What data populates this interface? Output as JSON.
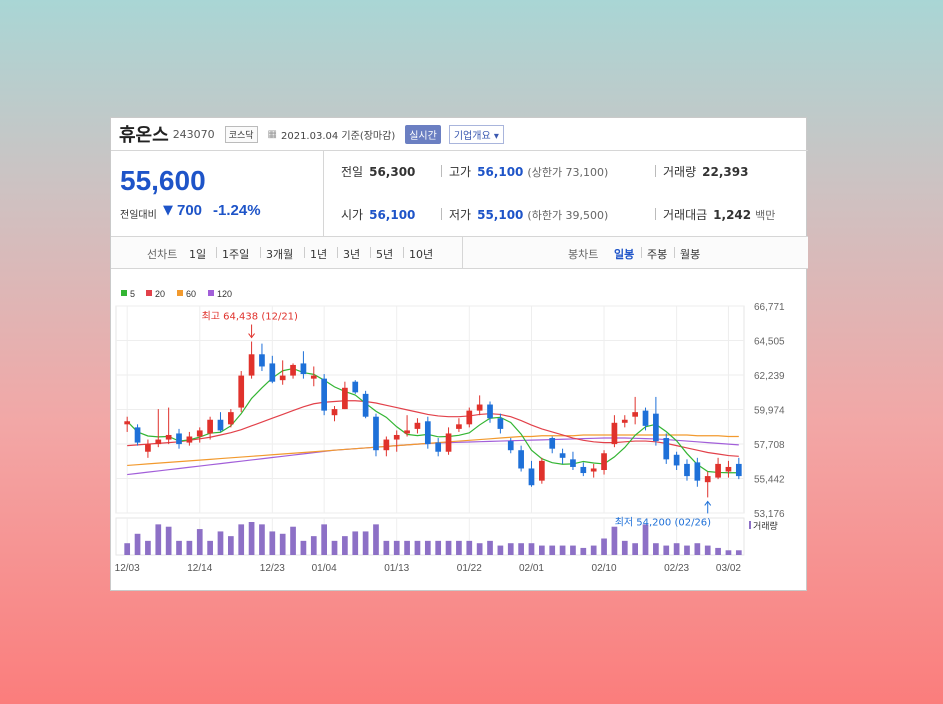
{
  "header": {
    "name": "휴온스",
    "code": "243070",
    "market": "코스닥",
    "date": "2021.03.04 기준(장마감)",
    "realtime": "실시간",
    "overview": "기업개요 ▾"
  },
  "quote": {
    "price": "55,600",
    "change_label": "전일대비",
    "change_arrow": "▼",
    "change": "700",
    "change_pct": "-1.24%",
    "stats": [
      {
        "label": "전일",
        "value": "56,300",
        "sub": "",
        "blue": false
      },
      {
        "label": "고가",
        "value": "56,100",
        "sub": "(상한가 73,100)",
        "blue": true
      },
      {
        "label": "거래량",
        "value": "22,393",
        "sub": "",
        "blue": false
      },
      {
        "label": "시가",
        "value": "56,100",
        "sub": "",
        "blue": true
      },
      {
        "label": "저가",
        "value": "55,100",
        "sub": "(하한가 39,500)",
        "blue": true
      },
      {
        "label": "거래대금",
        "value": "1,242",
        "sub": "백만",
        "blue": false
      }
    ]
  },
  "periods": {
    "line_head": "선차트",
    "line": [
      "1일",
      "1주일",
      "3개월",
      "1년",
      "3년",
      "5년",
      "10년"
    ],
    "candle_head": "봉차트",
    "candle": [
      "일봉",
      "주봉",
      "월봉"
    ],
    "active": "일봉"
  },
  "colors": {
    "up": "#e0322c",
    "down": "#1e70d8",
    "ma5": "#33b533",
    "ma20": "#e2414a",
    "ma60": "#f29a2e",
    "ma120": "#a25fd9",
    "volume": "#8d70c6",
    "accent": "#1e54c8"
  },
  "chart_data": {
    "type": "candlestick",
    "legend": [
      "5",
      "20",
      "60",
      "120"
    ],
    "y_ticks": [
      "66,771",
      "64,505",
      "62,239",
      "59,974",
      "57,708",
      "55,442",
      "53,176"
    ],
    "ylim": [
      53176,
      66771
    ],
    "x_ticks": [
      {
        "label": "12/03",
        "index": 0
      },
      {
        "label": "12/14",
        "index": 7
      },
      {
        "label": "12/23",
        "index": 14
      },
      {
        "label": "01/04",
        "index": 19
      },
      {
        "label": "01/13",
        "index": 26
      },
      {
        "label": "01/22",
        "index": 33
      },
      {
        "label": "02/01",
        "index": 39
      },
      {
        "label": "02/10",
        "index": 46
      },
      {
        "label": "02/23",
        "index": 53
      },
      {
        "label": "03/02",
        "index": 58
      }
    ],
    "high_annotation": {
      "text": "최고 64,438 (12/21)",
      "index": 12,
      "value": 64438
    },
    "low_annotation": {
      "text": "최저 54,200 (02/26)",
      "index": 56,
      "value": 54200
    },
    "volume_label": "거래량",
    "candles": [
      {
        "o": 59000,
        "h": 59500,
        "l": 58500,
        "c": 59200
      },
      {
        "o": 58800,
        "h": 59000,
        "l": 57600,
        "c": 57800
      },
      {
        "o": 57200,
        "h": 58000,
        "l": 56800,
        "c": 57700
      },
      {
        "o": 57700,
        "h": 60000,
        "l": 57500,
        "c": 58000
      },
      {
        "o": 58000,
        "h": 60100,
        "l": 57700,
        "c": 58300
      },
      {
        "o": 58400,
        "h": 58700,
        "l": 57400,
        "c": 57700
      },
      {
        "o": 57800,
        "h": 58500,
        "l": 57600,
        "c": 58200
      },
      {
        "o": 58200,
        "h": 58800,
        "l": 57800,
        "c": 58600
      },
      {
        "o": 58400,
        "h": 59500,
        "l": 58000,
        "c": 59300
      },
      {
        "o": 59300,
        "h": 59800,
        "l": 58500,
        "c": 58600
      },
      {
        "o": 59000,
        "h": 60000,
        "l": 58800,
        "c": 59800
      },
      {
        "o": 60100,
        "h": 62500,
        "l": 59800,
        "c": 62200
      },
      {
        "o": 62200,
        "h": 64438,
        "l": 62000,
        "c": 63600
      },
      {
        "o": 63600,
        "h": 64300,
        "l": 62500,
        "c": 62800
      },
      {
        "o": 63000,
        "h": 63500,
        "l": 61700,
        "c": 61800
      },
      {
        "o": 61900,
        "h": 63200,
        "l": 61600,
        "c": 62200
      },
      {
        "o": 62200,
        "h": 63000,
        "l": 62000,
        "c": 62900
      },
      {
        "o": 63000,
        "h": 63800,
        "l": 62000,
        "c": 62300
      },
      {
        "o": 62000,
        "h": 62800,
        "l": 61500,
        "c": 62200
      },
      {
        "o": 62000,
        "h": 62300,
        "l": 59600,
        "c": 59900
      },
      {
        "o": 59600,
        "h": 60200,
        "l": 59200,
        "c": 60000
      },
      {
        "o": 60000,
        "h": 61800,
        "l": 60000,
        "c": 61400
      },
      {
        "o": 61800,
        "h": 61900,
        "l": 61000,
        "c": 61100
      },
      {
        "o": 61000,
        "h": 61200,
        "l": 59400,
        "c": 59500
      },
      {
        "o": 59500,
        "h": 59700,
        "l": 56900,
        "c": 57300
      },
      {
        "o": 57300,
        "h": 58200,
        "l": 56900,
        "c": 58000
      },
      {
        "o": 58000,
        "h": 58600,
        "l": 57200,
        "c": 58300
      },
      {
        "o": 58400,
        "h": 59600,
        "l": 58200,
        "c": 58600
      },
      {
        "o": 58700,
        "h": 59400,
        "l": 58400,
        "c": 59100
      },
      {
        "o": 59200,
        "h": 59500,
        "l": 57400,
        "c": 57700
      },
      {
        "o": 57800,
        "h": 58100,
        "l": 56900,
        "c": 57200
      },
      {
        "o": 57200,
        "h": 58800,
        "l": 57000,
        "c": 58400
      },
      {
        "o": 58700,
        "h": 59400,
        "l": 58500,
        "c": 59000
      },
      {
        "o": 59000,
        "h": 60100,
        "l": 58800,
        "c": 59900
      },
      {
        "o": 59900,
        "h": 60900,
        "l": 59600,
        "c": 60300
      },
      {
        "o": 60300,
        "h": 60500,
        "l": 59100,
        "c": 59400
      },
      {
        "o": 59400,
        "h": 59700,
        "l": 58400,
        "c": 58700
      },
      {
        "o": 57900,
        "h": 58100,
        "l": 57100,
        "c": 57300
      },
      {
        "o": 57300,
        "h": 57600,
        "l": 55900,
        "c": 56100
      },
      {
        "o": 56100,
        "h": 56600,
        "l": 54900,
        "c": 55000
      },
      {
        "o": 55300,
        "h": 56800,
        "l": 55100,
        "c": 56600
      },
      {
        "o": 58100,
        "h": 58200,
        "l": 57100,
        "c": 57400
      },
      {
        "o": 57100,
        "h": 57400,
        "l": 56400,
        "c": 56800
      },
      {
        "o": 56700,
        "h": 57200,
        "l": 56000,
        "c": 56200
      },
      {
        "o": 56200,
        "h": 56500,
        "l": 55600,
        "c": 55800
      },
      {
        "o": 55900,
        "h": 56400,
        "l": 55500,
        "c": 56100
      },
      {
        "o": 56000,
        "h": 57300,
        "l": 55700,
        "c": 57100
      },
      {
        "o": 57700,
        "h": 59600,
        "l": 57500,
        "c": 59100
      },
      {
        "o": 59100,
        "h": 59600,
        "l": 58800,
        "c": 59300
      },
      {
        "o": 59500,
        "h": 60800,
        "l": 59000,
        "c": 59800
      },
      {
        "o": 59900,
        "h": 60100,
        "l": 58600,
        "c": 58900
      },
      {
        "o": 59700,
        "h": 60800,
        "l": 57600,
        "c": 57900
      },
      {
        "o": 58100,
        "h": 58400,
        "l": 56400,
        "c": 56700
      },
      {
        "o": 57000,
        "h": 57200,
        "l": 56000,
        "c": 56300
      },
      {
        "o": 56400,
        "h": 56700,
        "l": 55300,
        "c": 55600
      },
      {
        "o": 56500,
        "h": 56800,
        "l": 54900,
        "c": 55300
      },
      {
        "o": 55200,
        "h": 55900,
        "l": 54200,
        "c": 55600
      },
      {
        "o": 55500,
        "h": 56800,
        "l": 55400,
        "c": 56400
      },
      {
        "o": 55900,
        "h": 56600,
        "l": 55500,
        "c": 56200
      },
      {
        "o": 56400,
        "h": 56800,
        "l": 55400,
        "c": 55600
      }
    ],
    "volume": [
      5,
      9,
      6,
      13,
      12,
      6,
      6,
      11,
      6,
      10,
      8,
      13,
      14,
      13,
      10,
      9,
      12,
      6,
      8,
      13,
      6,
      8,
      10,
      10,
      13,
      6,
      6,
      6,
      6,
      6,
      6,
      6,
      6,
      6,
      5,
      6,
      4,
      5,
      5,
      5,
      4,
      4,
      4,
      4,
      3,
      4,
      7,
      12,
      6,
      5,
      13,
      5,
      4,
      5,
      4,
      5,
      4,
      3,
      2,
      2
    ],
    "ma20": [
      57600,
      57650,
      57700,
      57750,
      57800,
      57850,
      57950,
      58050,
      58150,
      58300,
      58450,
      58650,
      58900,
      59150,
      59400,
      59650,
      59900,
      60150,
      60350,
      60450,
      60500,
      60550,
      60550,
      60500,
      60400,
      60250,
      60100,
      59950,
      59800,
      59650,
      59550,
      59500,
      59500,
      59550,
      59650,
      59700,
      59650,
      59500,
      59250,
      58950,
      58700,
      58500,
      58300,
      58100,
      57950,
      57850,
      57800,
      57800,
      57850,
      57900,
      57900,
      57850,
      57750,
      57600,
      57450,
      57300,
      57150,
      57050,
      56950,
      56900
    ],
    "ma60": [
      56300,
      56350,
      56400,
      56450,
      56500,
      56550,
      56600,
      56650,
      56700,
      56750,
      56800,
      56850,
      56900,
      56950,
      57000,
      57050,
      57100,
      57150,
      57200,
      57250,
      57300,
      57350,
      57400,
      57450,
      57500,
      57550,
      57600,
      57650,
      57700,
      57750,
      57800,
      57850,
      57900,
      57950,
      58000,
      58050,
      58100,
      58150,
      58200,
      58200,
      58250,
      58250,
      58250,
      58250,
      58300,
      58300,
      58300,
      58300,
      58300,
      58300,
      58300,
      58300,
      58300,
      58300,
      58300,
      58250,
      58250,
      58250,
      58200,
      58200
    ],
    "ma120": [
      55700,
      55780,
      55860,
      55940,
      56020,
      56100,
      56180,
      56260,
      56340,
      56420,
      56500,
      56580,
      56660,
      56740,
      56820,
      56900,
      56980,
      57060,
      57140,
      57220,
      57300,
      57350,
      57400,
      57450,
      57500,
      57550,
      57600,
      57650,
      57700,
      57740,
      57780,
      57800,
      57820,
      57840,
      57860,
      57880,
      57900,
      57920,
      57940,
      57960,
      57980,
      58000,
      58020,
      58040,
      58060,
      58080,
      58100,
      58100,
      58100,
      58080,
      58060,
      58040,
      58000,
      57950,
      57900,
      57850,
      57800,
      57750,
      57700,
      57650
    ]
  }
}
